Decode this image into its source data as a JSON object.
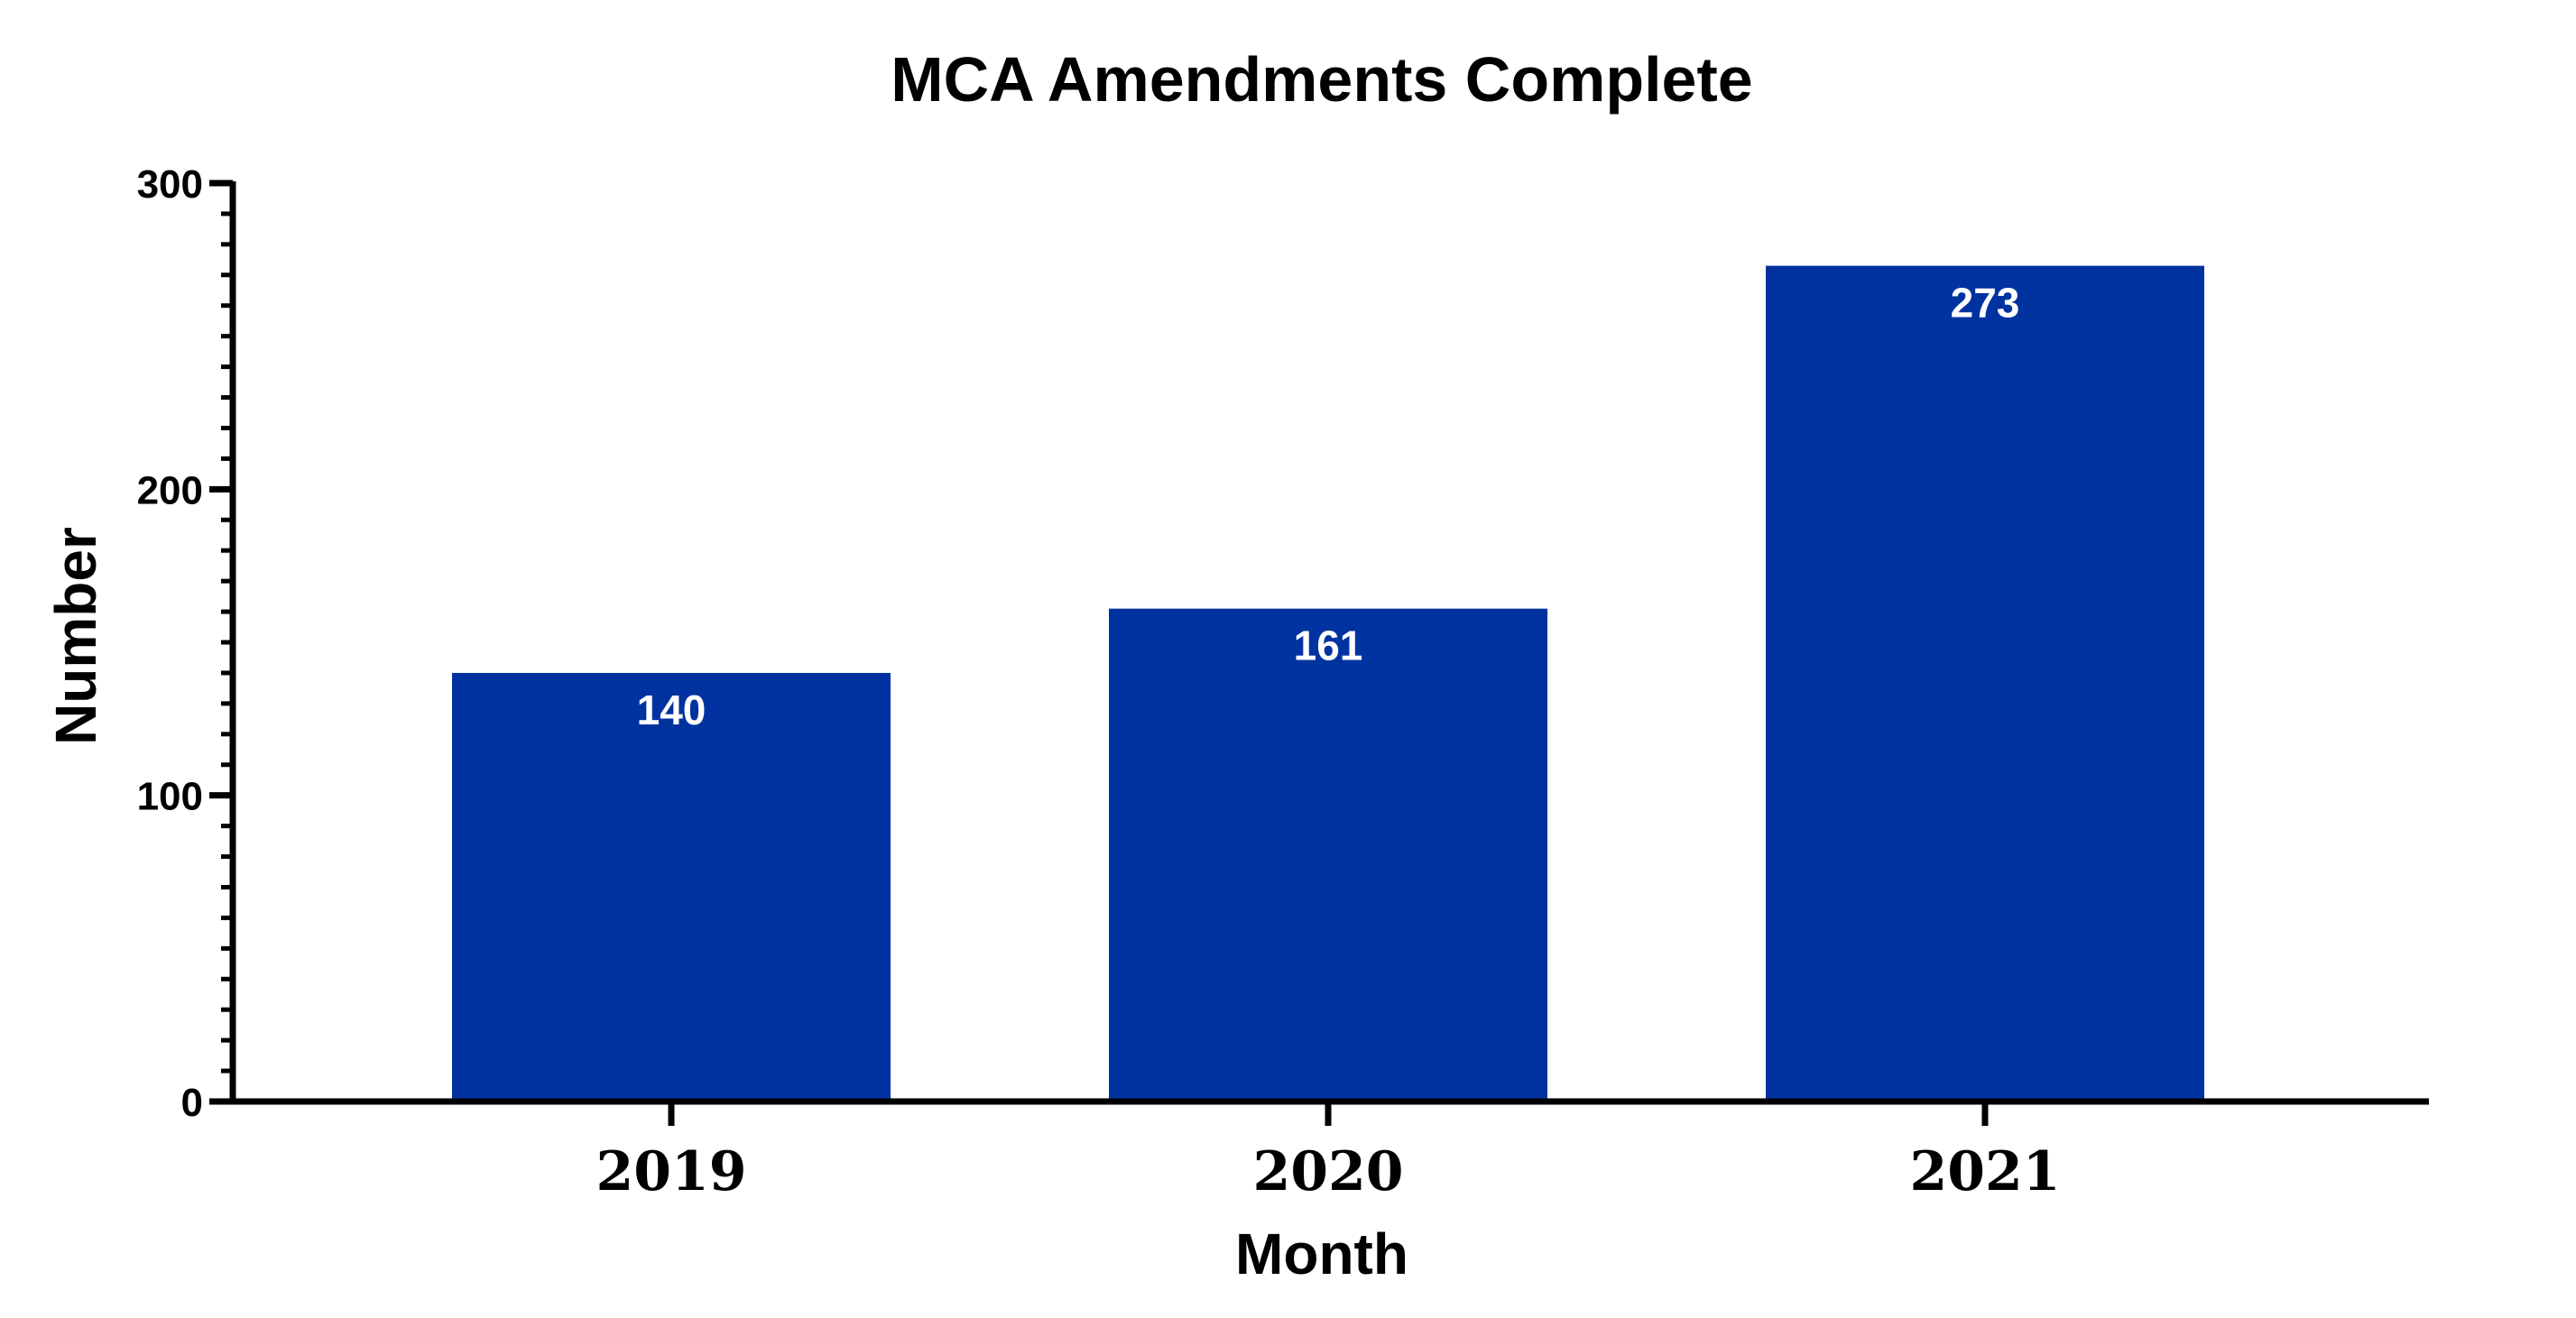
{
  "chart_data": {
    "type": "bar",
    "title": "MCA Amendments Complete",
    "xlabel": "Month",
    "ylabel": "Number",
    "categories": [
      "2019",
      "2020",
      "2021"
    ],
    "values": [
      140,
      161,
      273
    ],
    "data_labels": [
      "140",
      "161",
      "273"
    ],
    "ylim": [
      0,
      300
    ],
    "y_ticks": [
      0,
      100,
      200,
      300
    ],
    "y_tick_labels": [
      "0",
      "100",
      "200",
      "300"
    ],
    "y_minor_ticks_per_interval": 10,
    "grid": false,
    "legend": "none",
    "bar_color": "#0033A0",
    "bar_label_color": "#FFFFFF"
  }
}
